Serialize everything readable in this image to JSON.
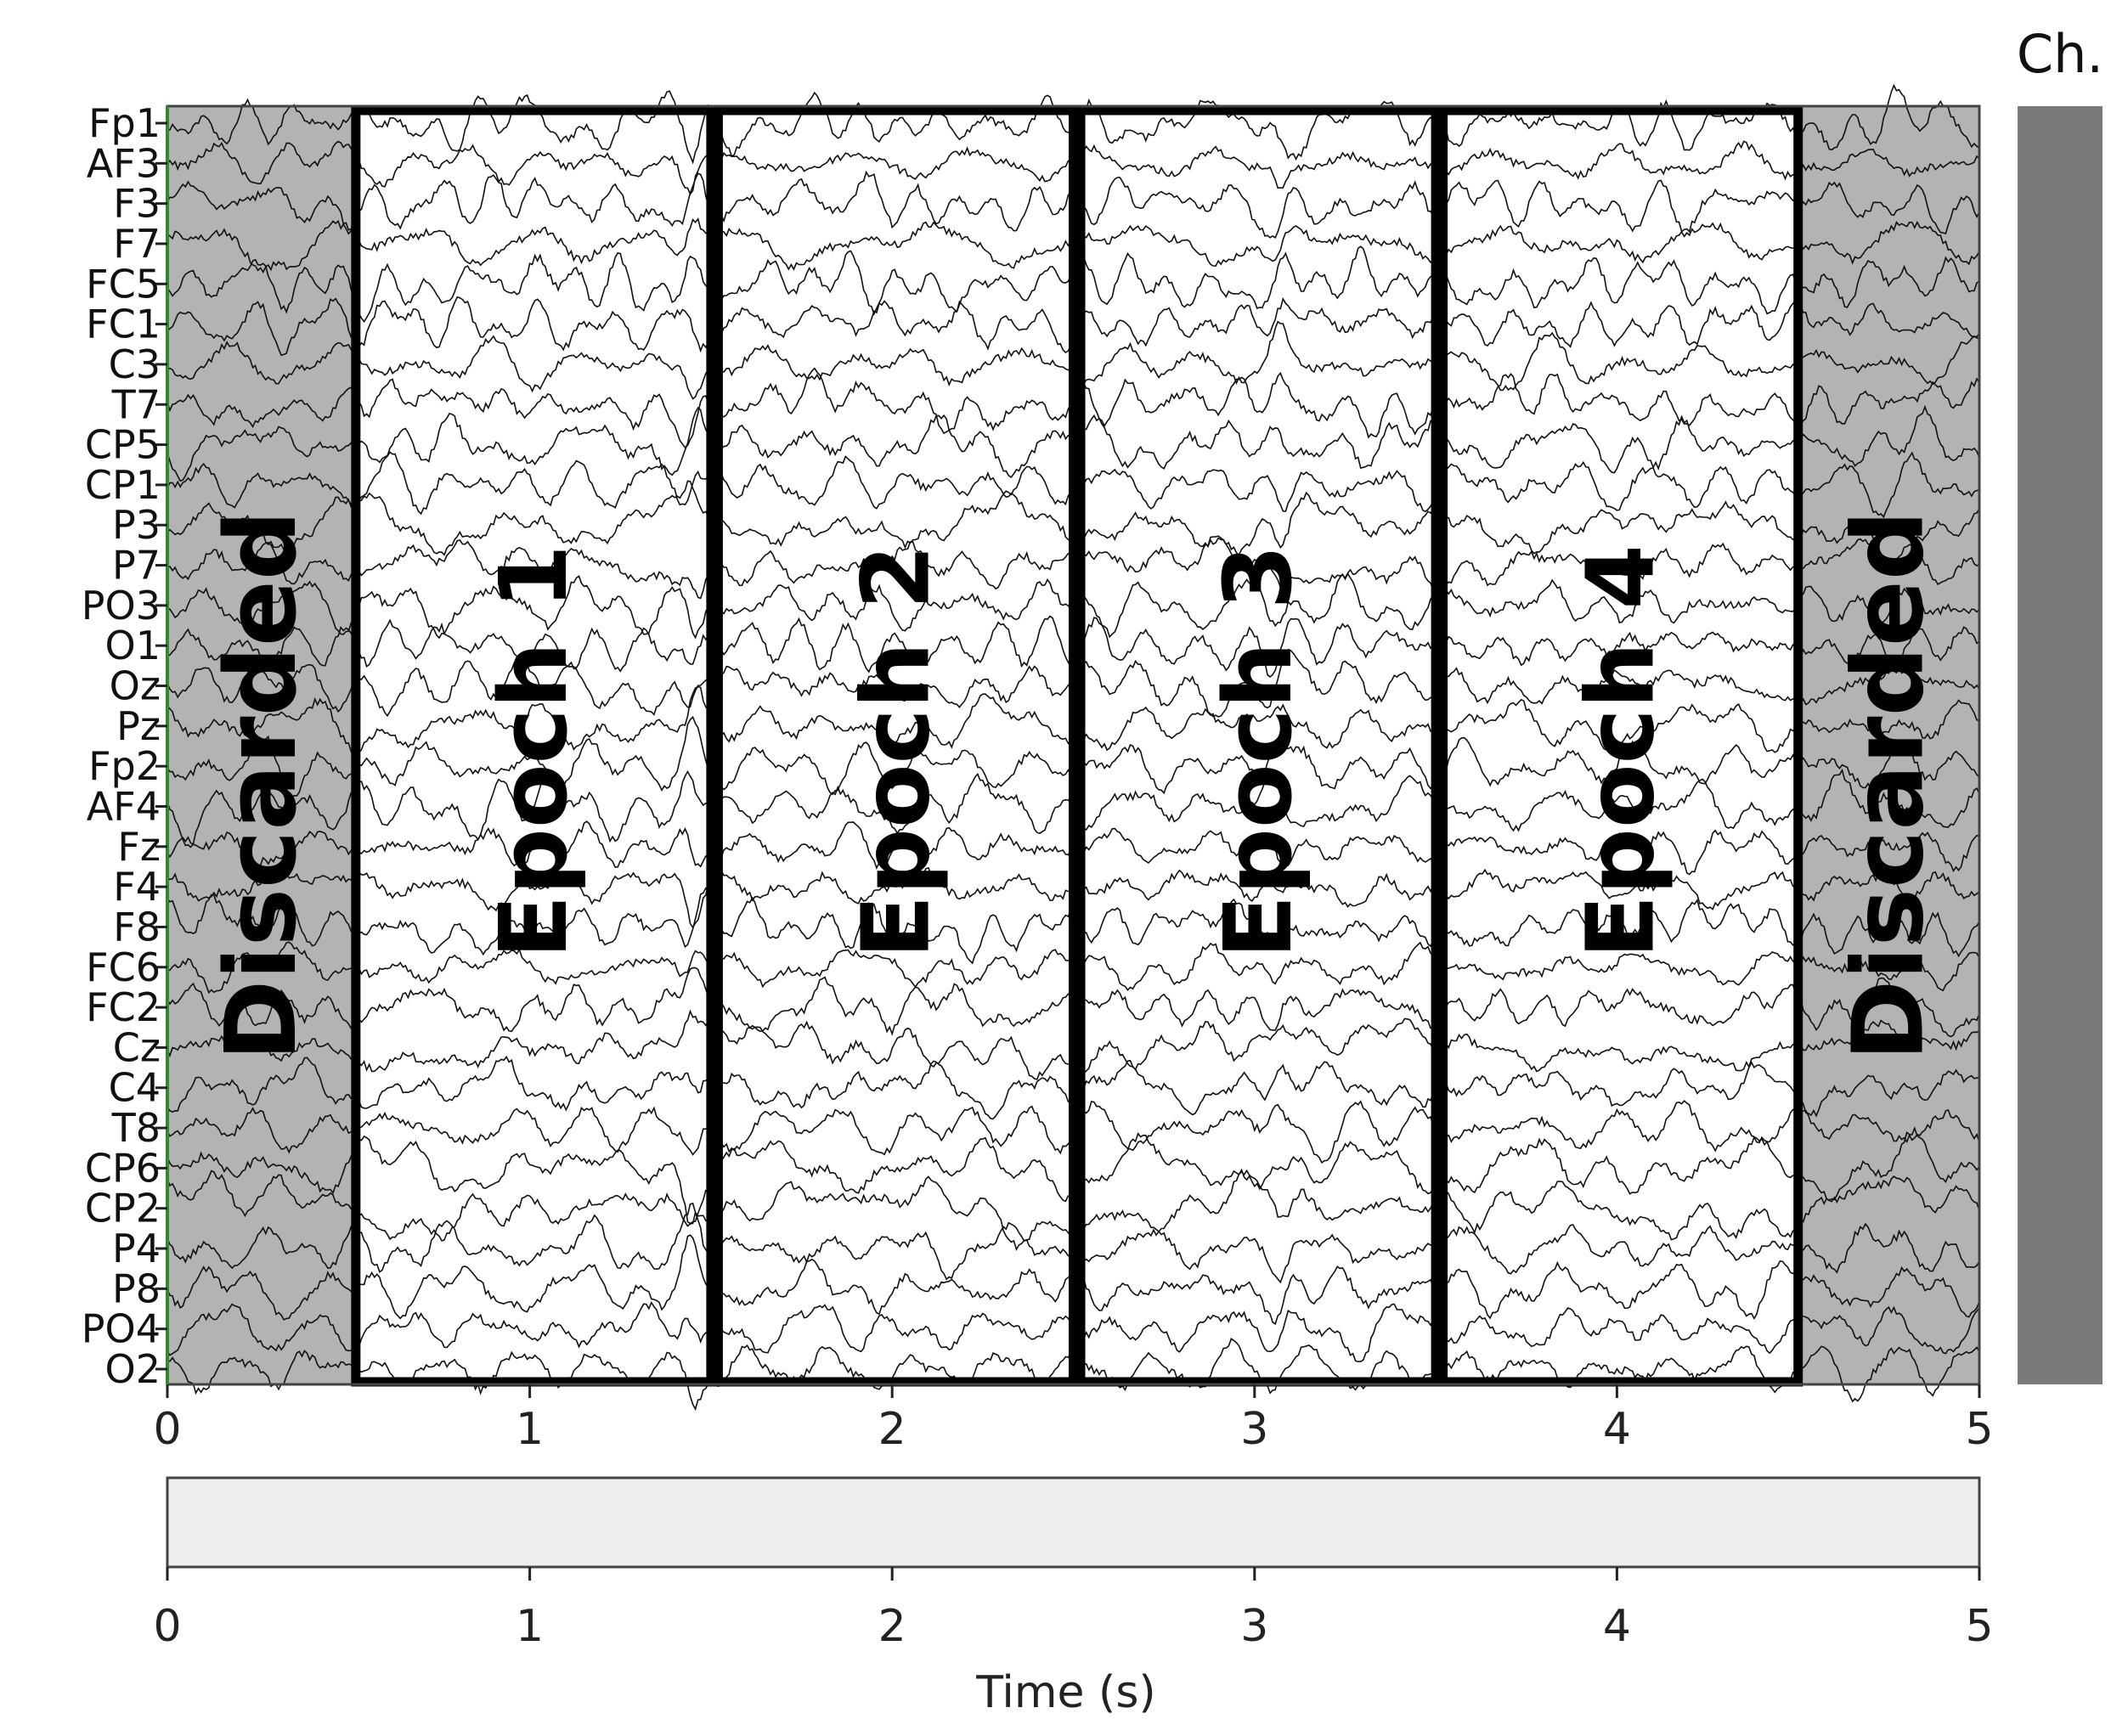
{
  "chart_data": {
    "type": "line",
    "title": "",
    "channels": [
      "Fp1",
      "AF3",
      "F3",
      "F7",
      "FC5",
      "FC1",
      "C3",
      "T7",
      "CP5",
      "CP1",
      "P3",
      "P7",
      "PO3",
      "O1",
      "Oz",
      "Pz",
      "Fp2",
      "AF4",
      "Fz",
      "F4",
      "F8",
      "FC6",
      "FC2",
      "Cz",
      "C4",
      "T8",
      "CP6",
      "CP2",
      "P4",
      "P8",
      "PO4",
      "O2"
    ],
    "xlim": [
      0,
      5
    ],
    "x_ticks": [
      "0",
      "1",
      "2",
      "3",
      "4",
      "5"
    ],
    "xlabel": "Time (s)",
    "regions": [
      {
        "label": "Discarded",
        "start": 0.0,
        "end": 0.52,
        "kind": "discarded"
      },
      {
        "label": "Epoch 1",
        "start": 0.52,
        "end": 1.5,
        "kind": "epoch"
      },
      {
        "label": "Epoch 2",
        "start": 1.52,
        "end": 2.5,
        "kind": "epoch"
      },
      {
        "label": "Epoch 3",
        "start": 2.52,
        "end": 3.5,
        "kind": "epoch"
      },
      {
        "label": "Epoch 4",
        "start": 3.52,
        "end": 4.5,
        "kind": "epoch"
      },
      {
        "label": "Discarded",
        "start": 4.5,
        "end": 5.0,
        "kind": "discarded"
      }
    ],
    "side_panel_label": "Ch.",
    "grid": false,
    "legend": "none",
    "colors": {
      "discarded_fill": "#b3b3b3",
      "epoch_border": "#000000",
      "trace": "#111111",
      "side_bar": "#7a7a7a",
      "overview_fill": "#eeeeee",
      "left_edge": "#2e8b2e"
    }
  }
}
